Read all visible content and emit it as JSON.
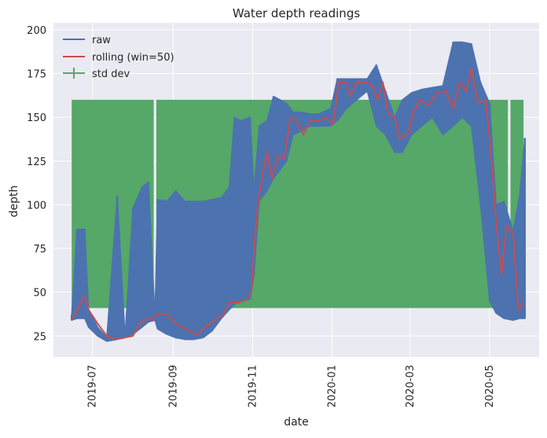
{
  "chart_data": {
    "type": "line",
    "title": "Water depth readings",
    "xlabel": "date",
    "ylabel": "depth",
    "x_range": [
      "2019-06-01",
      "2020-06-08"
    ],
    "ylim": [
      13,
      204
    ],
    "grid": true,
    "legend_position": "top-left",
    "x_ticks": [
      {
        "date": "2019-07-01",
        "label": "2019-07"
      },
      {
        "date": "2019-09-01",
        "label": "2019-09"
      },
      {
        "date": "2019-11-01",
        "label": "2019-11"
      },
      {
        "date": "2020-01-01",
        "label": "2020-01"
      },
      {
        "date": "2020-03-01",
        "label": "2020-03"
      },
      {
        "date": "2020-05-01",
        "label": "2020-05"
      }
    ],
    "y_ticks": [
      25,
      50,
      75,
      100,
      125,
      150,
      175,
      200
    ],
    "colors": {
      "raw": "#4c72b0",
      "rolling": "#c44e52",
      "std": "#55a868",
      "grid_bg": "#eaeaf2"
    },
    "series": [
      {
        "name": "raw",
        "kind": "band_line",
        "points": [
          [
            "2019-06-15",
            34,
            37
          ],
          [
            "2019-06-19",
            35,
            86
          ],
          [
            "2019-06-25",
            35,
            86
          ],
          [
            "2019-06-28",
            30,
            40
          ],
          [
            "2019-07-05",
            25,
            30
          ],
          [
            "2019-07-12",
            22,
            24
          ],
          [
            "2019-07-20",
            23,
            105
          ],
          [
            "2019-07-26",
            24,
            25
          ],
          [
            "2019-08-01",
            26,
            98
          ],
          [
            "2019-08-08",
            30,
            110
          ],
          [
            "2019-08-13",
            33,
            113
          ],
          [
            "2019-08-18",
            34,
            36
          ],
          [
            "2019-08-20",
            29,
            103
          ],
          [
            "2019-08-27",
            26,
            102
          ],
          [
            "2019-09-03",
            24,
            108
          ],
          [
            "2019-09-10",
            23,
            102
          ],
          [
            "2019-09-17",
            23,
            102
          ],
          [
            "2019-09-24",
            24,
            102
          ],
          [
            "2019-10-01",
            28,
            103
          ],
          [
            "2019-10-08",
            35,
            104
          ],
          [
            "2019-10-14",
            40,
            110
          ],
          [
            "2019-10-18",
            43,
            150
          ],
          [
            "2019-10-23",
            45,
            148
          ],
          [
            "2019-10-30",
            46,
            150
          ],
          [
            "2019-11-02",
            60,
            108
          ],
          [
            "2019-11-06",
            102,
            145
          ],
          [
            "2019-11-12",
            108,
            148
          ],
          [
            "2019-11-17",
            115,
            162
          ],
          [
            "2019-11-22",
            120,
            160
          ],
          [
            "2019-11-27",
            125,
            158
          ],
          [
            "2019-12-02",
            140,
            153
          ],
          [
            "2019-12-08",
            142,
            153
          ],
          [
            "2019-12-15",
            145,
            152
          ],
          [
            "2019-12-22",
            145,
            152
          ],
          [
            "2019-12-31",
            145,
            155
          ],
          [
            "2020-01-05",
            148,
            172
          ],
          [
            "2020-01-12",
            155,
            172
          ],
          [
            "2020-01-20",
            160,
            172
          ],
          [
            "2020-01-28",
            165,
            172
          ],
          [
            "2020-02-04",
            145,
            180
          ],
          [
            "2020-02-11",
            140,
            165
          ],
          [
            "2020-02-18",
            130,
            150
          ],
          [
            "2020-02-24",
            130,
            160
          ],
          [
            "2020-03-02",
            140,
            164
          ],
          [
            "2020-03-10",
            145,
            166
          ],
          [
            "2020-03-18",
            150,
            167
          ],
          [
            "2020-03-26",
            140,
            168
          ],
          [
            "2020-04-03",
            145,
            193
          ],
          [
            "2020-04-10",
            150,
            193
          ],
          [
            "2020-04-17",
            145,
            192
          ],
          [
            "2020-04-24",
            100,
            170
          ],
          [
            "2020-05-01",
            45,
            158
          ],
          [
            "2020-05-06",
            38,
            100
          ],
          [
            "2020-05-12",
            35,
            102
          ],
          [
            "2020-05-19",
            34,
            85
          ],
          [
            "2020-05-24",
            35,
            105
          ],
          [
            "2020-05-28",
            35,
            138
          ]
        ]
      },
      {
        "name": "rolling (win=50)",
        "kind": "line",
        "points": [
          [
            "2019-06-15",
            35
          ],
          [
            "2019-06-18",
            38
          ],
          [
            "2019-06-22",
            44
          ],
          [
            "2019-06-25",
            48
          ],
          [
            "2019-06-28",
            40
          ],
          [
            "2019-07-05",
            32
          ],
          [
            "2019-07-12",
            25
          ],
          [
            "2019-07-18",
            23
          ],
          [
            "2019-07-25",
            24
          ],
          [
            "2019-08-01",
            25
          ],
          [
            "2019-08-06",
            32
          ],
          [
            "2019-08-12",
            35
          ],
          [
            "2019-08-16",
            34
          ],
          [
            "2019-08-20",
            38
          ],
          [
            "2019-08-28",
            37
          ],
          [
            "2019-09-03",
            32
          ],
          [
            "2019-09-08",
            30
          ],
          [
            "2019-09-13",
            28
          ],
          [
            "2019-09-19",
            26
          ],
          [
            "2019-09-25",
            30
          ],
          [
            "2019-10-01",
            33
          ],
          [
            "2019-10-07",
            36
          ],
          [
            "2019-10-10",
            38
          ],
          [
            "2019-10-14",
            44
          ],
          [
            "2019-10-21",
            44
          ],
          [
            "2019-10-28",
            46
          ],
          [
            "2019-10-31",
            50
          ],
          [
            "2019-11-02",
            75
          ],
          [
            "2019-11-05",
            100
          ],
          [
            "2019-11-08",
            115
          ],
          [
            "2019-11-12",
            130
          ],
          [
            "2019-11-16",
            115
          ],
          [
            "2019-11-20",
            128
          ],
          [
            "2019-11-25",
            126
          ],
          [
            "2019-11-30",
            150
          ],
          [
            "2019-12-05",
            148
          ],
          [
            "2019-12-10",
            140
          ],
          [
            "2019-12-15",
            148
          ],
          [
            "2019-12-22",
            148
          ],
          [
            "2019-12-28",
            150
          ],
          [
            "2020-01-02",
            146
          ],
          [
            "2020-01-06",
            170
          ],
          [
            "2020-01-11",
            170
          ],
          [
            "2020-01-15",
            162
          ],
          [
            "2020-01-20",
            170
          ],
          [
            "2020-01-27",
            170
          ],
          [
            "2020-02-01",
            168
          ],
          [
            "2020-02-05",
            160
          ],
          [
            "2020-02-09",
            170
          ],
          [
            "2020-02-13",
            152
          ],
          [
            "2020-02-18",
            150
          ],
          [
            "2020-02-22",
            138
          ],
          [
            "2020-02-28",
            140
          ],
          [
            "2020-03-03",
            152
          ],
          [
            "2020-03-08",
            160
          ],
          [
            "2020-03-15",
            157
          ],
          [
            "2020-03-22",
            164
          ],
          [
            "2020-03-28",
            165
          ],
          [
            "2020-04-03",
            155
          ],
          [
            "2020-04-08",
            170
          ],
          [
            "2020-04-13",
            165
          ],
          [
            "2020-04-17",
            178
          ],
          [
            "2020-04-22",
            158
          ],
          [
            "2020-04-28",
            160
          ],
          [
            "2020-05-02",
            130
          ],
          [
            "2020-05-06",
            90
          ],
          [
            "2020-05-10",
            60
          ],
          [
            "2020-05-14",
            88
          ],
          [
            "2020-05-19",
            84
          ],
          [
            "2020-05-23",
            40
          ],
          [
            "2020-05-27",
            44
          ]
        ]
      },
      {
        "name": "std dev",
        "kind": "errorbar_band",
        "center": 101,
        "low": 41,
        "high": 160,
        "segments": [
          [
            "2019-06-15",
            "2019-08-17"
          ],
          [
            "2019-08-19",
            "2020-05-15"
          ],
          [
            "2020-05-17",
            "2020-05-27"
          ]
        ]
      }
    ]
  }
}
